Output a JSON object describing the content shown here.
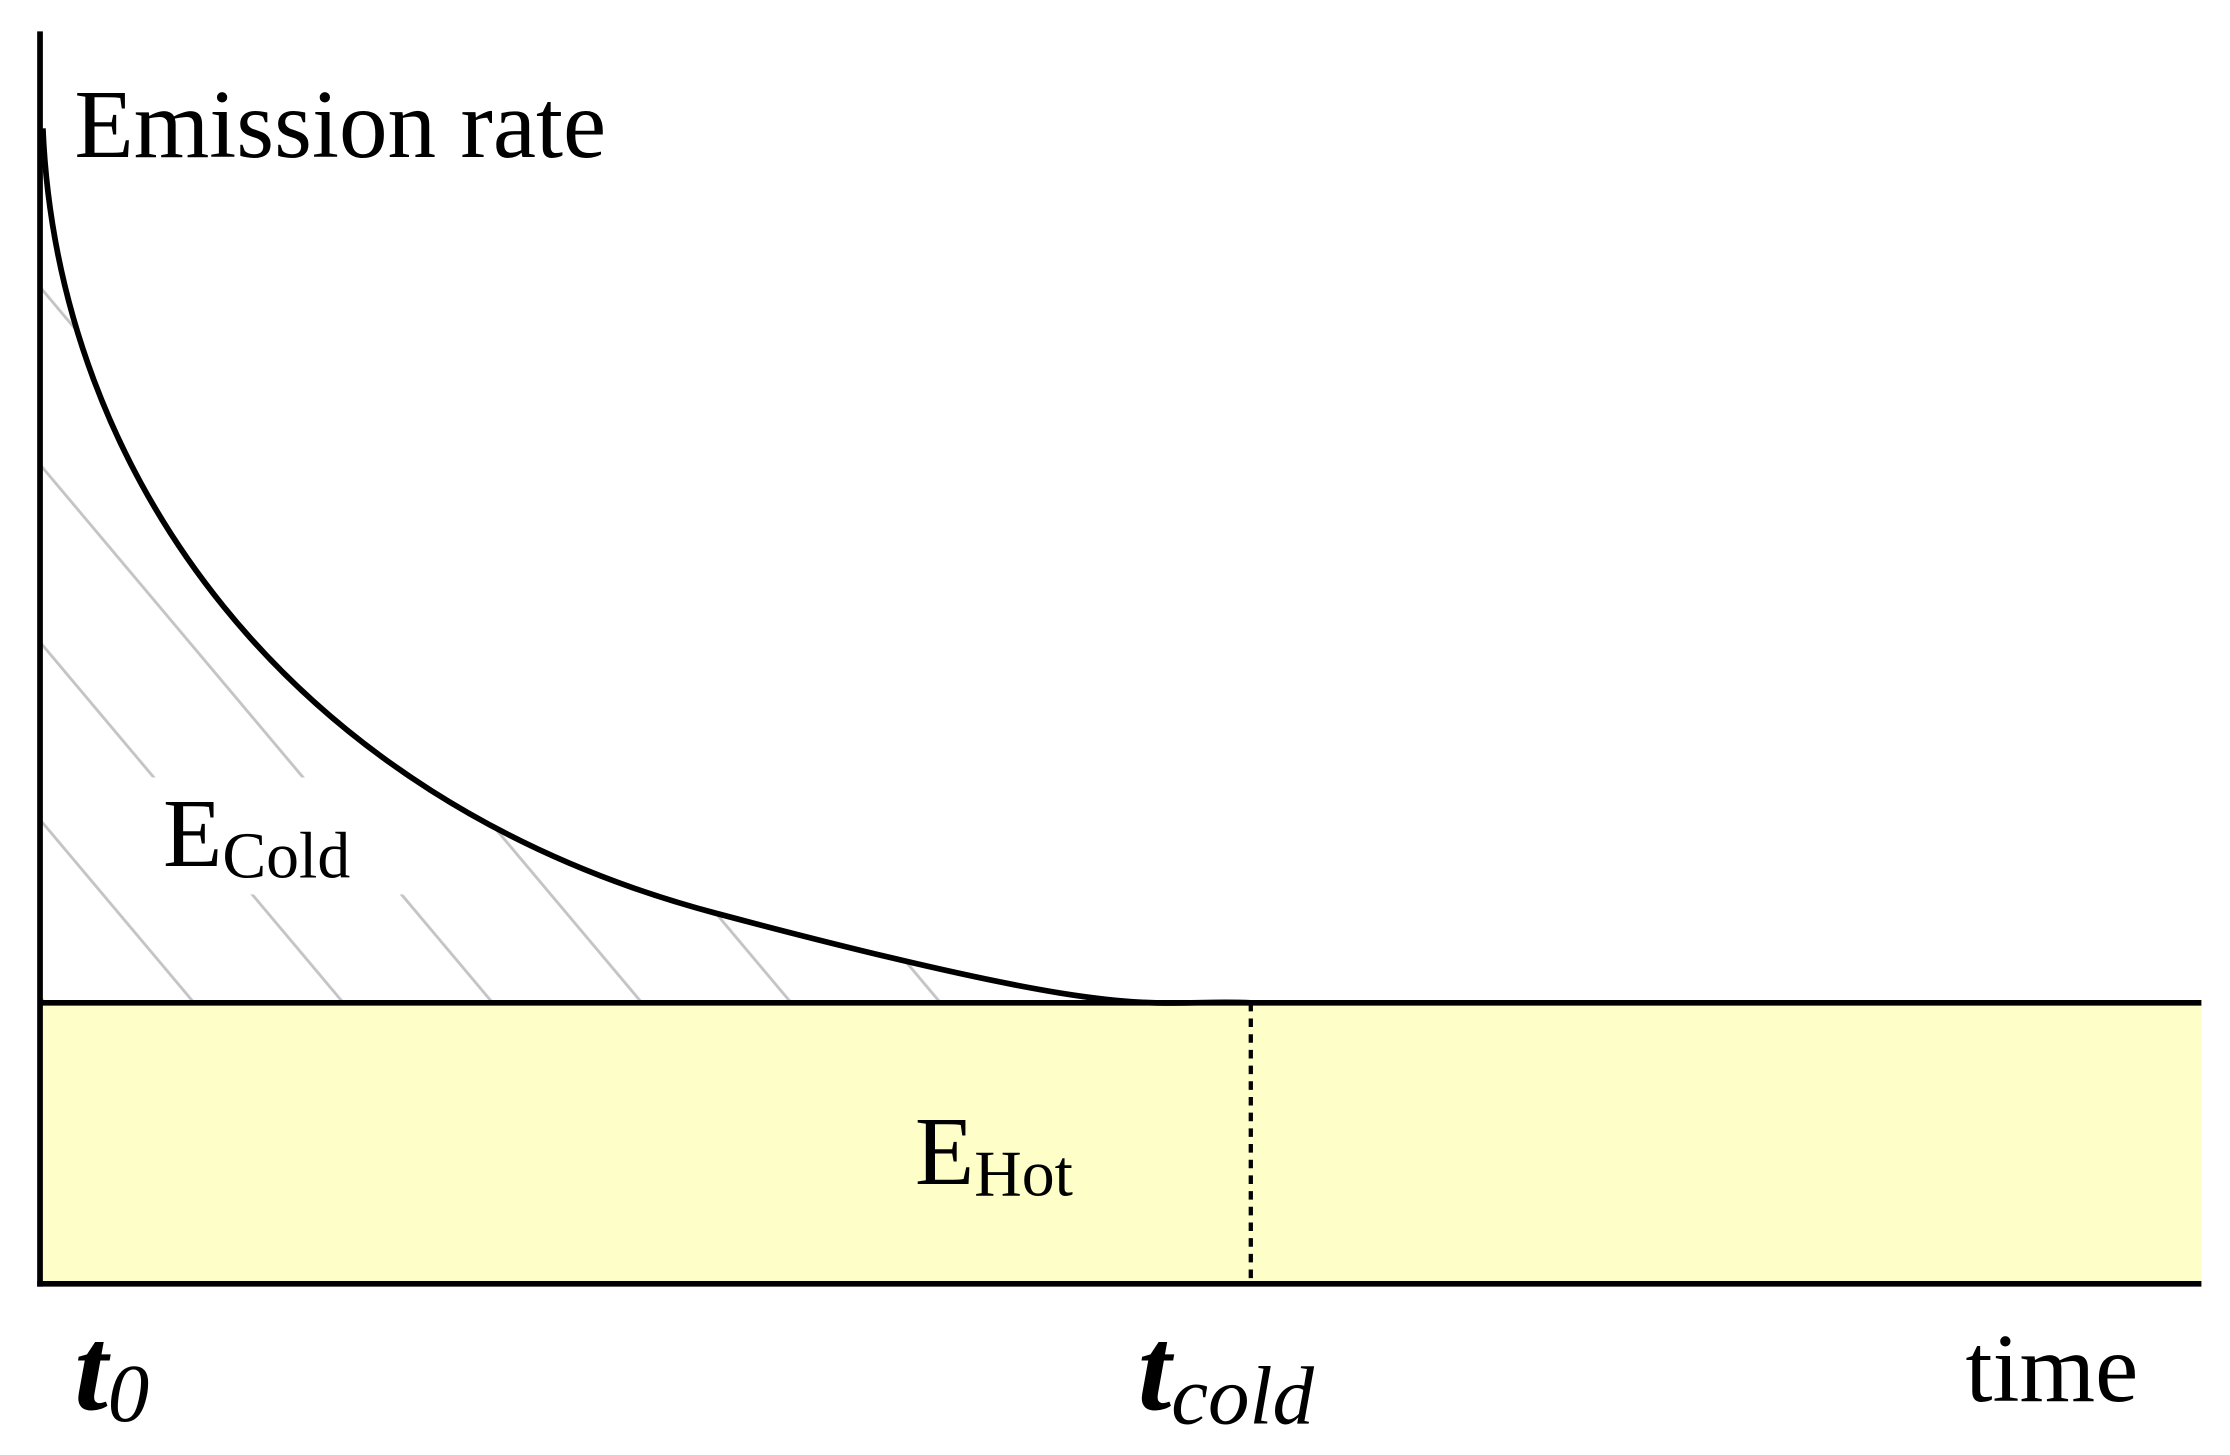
{
  "axes": {
    "y_label": "Emission rate",
    "x_label": "time"
  },
  "regions": {
    "cold": {
      "main": "E",
      "sub": "Cold"
    },
    "hot": {
      "main": "E",
      "sub": "Hot"
    }
  },
  "time_marks": {
    "start": {
      "main": "t",
      "sub": "0"
    },
    "cold": {
      "main": "t",
      "sub": "cold"
    }
  }
}
